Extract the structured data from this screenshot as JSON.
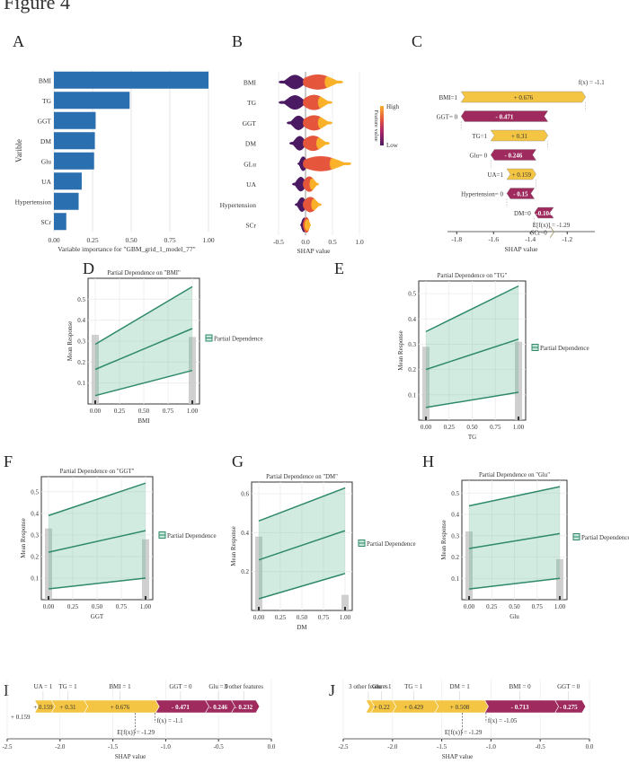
{
  "figure": {
    "title": "Figure 4"
  },
  "chart_data": [
    {
      "panel": "A",
      "type": "bar",
      "orientation": "horizontal",
      "categories": [
        "BMI",
        "TG",
        "GGT",
        "DM",
        "Glu",
        "UA",
        "Hypertension",
        "SCr"
      ],
      "values": [
        1.0,
        0.49,
        0.27,
        0.265,
        0.26,
        0.18,
        0.16,
        0.08
      ],
      "xlabel": "Variable importance  for \"GBM_grid_1_model_77\"",
      "ylabel": "Varible",
      "xlim": [
        0,
        1.0
      ],
      "xticks": [
        "0.00",
        "0.25",
        "0.50",
        "0.75",
        "1.00"
      ],
      "grid": true,
      "color": "#2a6faf"
    },
    {
      "panel": "B",
      "type": "scatter",
      "subtype": "shap-beeswarm",
      "categories": [
        "BMI",
        "TG",
        "GGT",
        "DM",
        "GLu",
        "UA",
        "Hypertension",
        "SCr"
      ],
      "series": [
        {
          "feature": "BMI",
          "low": -0.45,
          "high": 0.65
        },
        {
          "feature": "TG",
          "low": -0.45,
          "high": 0.45
        },
        {
          "feature": "GGT",
          "low": -0.3,
          "high": 0.45
        },
        {
          "feature": "DM",
          "low": -0.25,
          "high": 0.4
        },
        {
          "feature": "GLu",
          "low": -0.1,
          "high": 0.8
        },
        {
          "feature": "UA",
          "low": -0.2,
          "high": 0.2
        },
        {
          "feature": "Hypertension",
          "low": -0.15,
          "high": 0.25
        },
        {
          "feature": "SCr",
          "low": -0.05,
          "high": 0.05
        }
      ],
      "xlabel": "SHAP value",
      "xticks": [
        "-0.5",
        "0.0",
        "0.5",
        "1.0"
      ],
      "xlim": [
        -0.9,
        1.2
      ],
      "colorbar": {
        "label": "Feature value",
        "high": "High",
        "low": "Low",
        "colors": [
          "#4b1b63",
          "#a6236b",
          "#e4573c",
          "#f9b12a"
        ]
      }
    },
    {
      "panel": "C",
      "type": "bar",
      "subtype": "shap-waterfall",
      "rows": [
        {
          "label": "BMI=1",
          "value": "+ 0.676",
          "sign": "pos"
        },
        {
          "label": "GGT= 0",
          "value": "- 0.471",
          "sign": "neg"
        },
        {
          "label": "TG=1",
          "value": "+ 0.31",
          "sign": "pos"
        },
        {
          "label": "Glu= 0",
          "value": "- 0.246",
          "sign": "neg"
        },
        {
          "label": "UA=1",
          "value": "+ 0.159",
          "sign": "pos"
        },
        {
          "label": "Hypertension= 0",
          "value": "- 0.15",
          "sign": "neg"
        },
        {
          "label": "DM=0",
          "value": "-0.104",
          "sign": "neg"
        },
        {
          "label": "SCr=0",
          "value": "",
          "sign": "pos"
        }
      ],
      "fx": "f(x) =  -1.1",
      "efx": "E[f(x)] = -1.29",
      "xlabel": "SHAP value",
      "xticks": [
        "-1.8",
        "-1.6",
        "-1.4",
        "-1.2"
      ],
      "xlim": [
        -1.85,
        -1.05
      ],
      "colors": {
        "pos": "#f4c542",
        "neg": "#9e2a5e"
      }
    },
    {
      "panel": "D",
      "type": "line",
      "subtype": "partial-dependence",
      "title": "Partial Dependence on \"BMI\"",
      "xlabel": "BMI",
      "ylabel": "Mean Response",
      "x": [
        0,
        1
      ],
      "mean": [
        0.165,
        0.36
      ],
      "lower": [
        0.04,
        0.16
      ],
      "upper": [
        0.285,
        0.56
      ],
      "xticks": [
        "0.00",
        "0.25",
        "0.50",
        "0.75",
        "1.00"
      ],
      "yticks": [
        "0.1",
        "0.2",
        "0.3",
        "0.4",
        "0.5"
      ],
      "ylim": [
        0,
        0.6
      ],
      "hist": [
        0.33,
        0.32
      ],
      "legend": "Partial Dependence"
    },
    {
      "panel": "E",
      "type": "line",
      "subtype": "partial-dependence",
      "title": "Partial Dependence on \"TG\"",
      "xlabel": "TG",
      "ylabel": "Mean Response",
      "x": [
        0,
        1
      ],
      "mean": [
        0.2,
        0.32
      ],
      "lower": [
        0.05,
        0.11
      ],
      "upper": [
        0.35,
        0.53
      ],
      "xticks": [
        "0.00",
        "0.25",
        "0.50",
        "0.75",
        "1.00"
      ],
      "yticks": [
        "0.1",
        "0.2",
        "0.3",
        "0.4",
        "0.5"
      ],
      "ylim": [
        0,
        0.55
      ],
      "hist": [
        0.29,
        0.31
      ],
      "legend": "Partial Dependence"
    },
    {
      "panel": "F",
      "type": "line",
      "subtype": "partial-dependence",
      "title": "Partial Dependence on \"GGT\"",
      "xlabel": "GGT",
      "ylabel": "Mean Response",
      "x": [
        0,
        1
      ],
      "mean": [
        0.22,
        0.32
      ],
      "lower": [
        0.05,
        0.1
      ],
      "upper": [
        0.39,
        0.54
      ],
      "xticks": [
        "0.00",
        "0.25",
        "0.50",
        "0.75",
        "1.00"
      ],
      "yticks": [
        "0.1",
        "0.2",
        "0.3",
        "0.4",
        "0.5"
      ],
      "ylim": [
        0,
        0.57
      ],
      "hist": [
        0.33,
        0.28
      ],
      "legend": "Partial Dependence"
    },
    {
      "panel": "G",
      "type": "line",
      "subtype": "partial-dependence",
      "title": "Partial Dependence on \"DM\"",
      "xlabel": "DM",
      "ylabel": "Mean Response",
      "x": [
        0,
        1
      ],
      "mean": [
        0.26,
        0.41
      ],
      "lower": [
        0.06,
        0.19
      ],
      "upper": [
        0.46,
        0.63
      ],
      "xticks": [
        "0.00",
        "0.25",
        "0.50",
        "0.75",
        "1.00"
      ],
      "yticks": [
        "0.2",
        "0.4",
        "0.6"
      ],
      "ylim": [
        0,
        0.66
      ],
      "hist": [
        0.38,
        0.08
      ],
      "legend": "Partial Dependence"
    },
    {
      "panel": "H",
      "type": "line",
      "subtype": "partial-dependence",
      "title": "Partial Dependence on \"Glu\"",
      "xlabel": "Glu",
      "ylabel": "Mean Response",
      "x": [
        0,
        1
      ],
      "mean": [
        0.24,
        0.31
      ],
      "lower": [
        0.05,
        0.1
      ],
      "upper": [
        0.44,
        0.53
      ],
      "xticks": [
        "0.00",
        "0.25",
        "0.50",
        "0.75",
        "1.00"
      ],
      "yticks": [
        "0.1",
        "0.2",
        "0.3",
        "0.4",
        "0.5"
      ],
      "ylim": [
        0,
        0.56
      ],
      "hist": [
        0.32,
        0.19
      ],
      "legend": "Partial Dependence"
    },
    {
      "panel": "I",
      "type": "bar",
      "subtype": "shap-force",
      "segments": [
        {
          "label": "UA = 1",
          "value": "+ 0.159",
          "sign": "pos",
          "v": 0.159
        },
        {
          "label": "TG = 1",
          "value": "+ 0.31",
          "sign": "pos",
          "v": 0.31
        },
        {
          "label": "BMI = 1",
          "value": "+ 0.676",
          "sign": "pos",
          "v": 0.676
        },
        {
          "label": "GGT = 0",
          "value": "- 0.471",
          "sign": "neg",
          "v": 0.471
        },
        {
          "label": "Glu = 0",
          "value": "- 0.246",
          "sign": "neg",
          "v": 0.246
        },
        {
          "label": "3 other  features",
          "value": "- 0.232",
          "sign": "neg",
          "v": 0.232
        }
      ],
      "start": -2.24,
      "fx": "f(x) = -1.1",
      "efx": "E[f(x)] = -1.29",
      "fx_val": -1.1,
      "efx_val": -1.29,
      "xlabel": "SHAP value",
      "xticks": [
        "-2.5",
        "-2.0",
        "-1.5",
        "-1.0",
        "-0.5",
        "0.0"
      ],
      "xlim": [
        -2.5,
        0.0
      ]
    },
    {
      "panel": "J",
      "type": "bar",
      "subtype": "shap-force",
      "segments": [
        {
          "label": "3 other  features",
          "value": "",
          "sign": "pos",
          "v": 0.05
        },
        {
          "label": "Glu = 1",
          "value": "+ 0.22",
          "sign": "pos",
          "v": 0.22
        },
        {
          "label": "TG = 1",
          "value": "+ 0.429",
          "sign": "pos",
          "v": 0.429
        },
        {
          "label": "DM = 1",
          "value": "+ 0.508",
          "sign": "pos",
          "v": 0.508
        },
        {
          "label": "BMI = 0",
          "value": "- 0.713",
          "sign": "neg",
          "v": 0.713
        },
        {
          "label": "GGT = 0",
          "value": "- 0.275",
          "sign": "neg",
          "v": 0.275
        }
      ],
      "start": -2.27,
      "fx": "f(x) = -1.05",
      "efx": "E[f(x)] = -1.29",
      "fx_val": -1.05,
      "efx_val": -1.29,
      "xlabel": "SHAP value",
      "xticks": [
        "-2.5",
        "-2.0",
        "-1.5",
        "-1.0",
        "-0.5",
        "0.0"
      ],
      "xlim": [
        -2.5,
        0.0
      ]
    }
  ]
}
